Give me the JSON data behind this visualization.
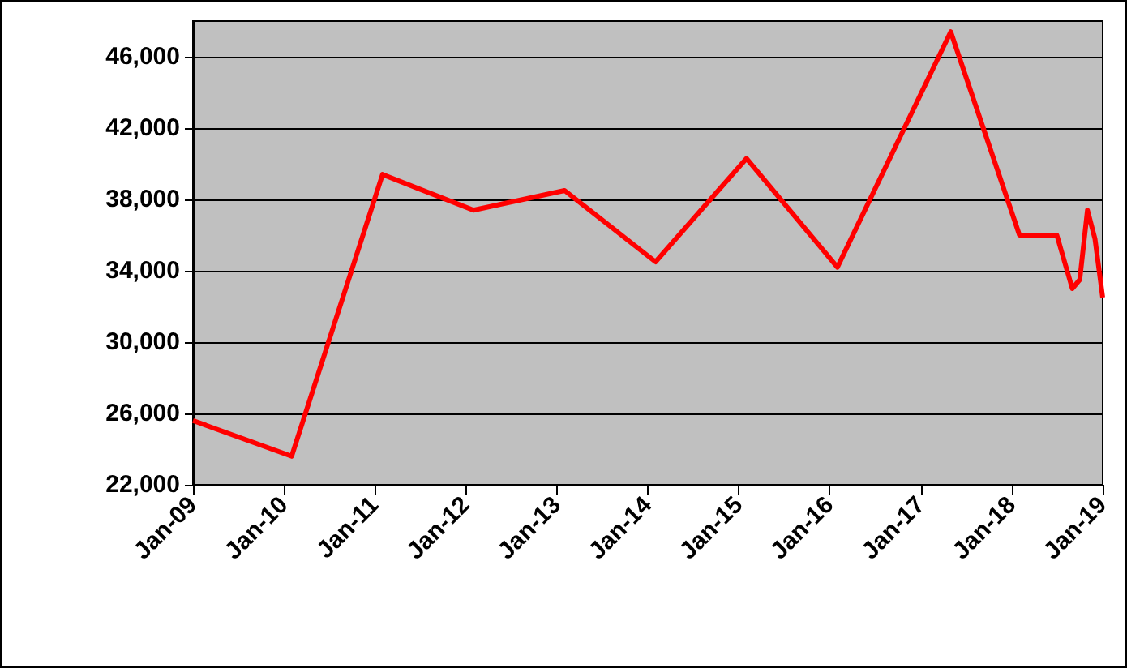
{
  "chart_data": {
    "type": "line",
    "x": [
      "2009-01",
      "2010-02",
      "2011-02",
      "2012-02",
      "2013-02",
      "2014-02",
      "2015-02",
      "2016-02",
      "2017-05",
      "2018-02",
      "2018-07",
      "2018-09",
      "2018-10",
      "2018-11",
      "2018-12",
      "2019-01"
    ],
    "series": [
      {
        "color": "#ff0000",
        "values": [
          25600,
          23600,
          39400,
          37400,
          38500,
          34500,
          40300,
          34200,
          47400,
          36000,
          36000,
          33000,
          33500,
          37400,
          35800,
          32500
        ]
      }
    ],
    "xlim": [
      "2009-01",
      "2019-01"
    ],
    "xticks": [
      {
        "value": "2009-01",
        "label": "Jan-09"
      },
      {
        "value": "2010-01",
        "label": "Jan-10"
      },
      {
        "value": "2011-01",
        "label": "Jan-11"
      },
      {
        "value": "2012-01",
        "label": "Jan-12"
      },
      {
        "value": "2013-01",
        "label": "Jan-13"
      },
      {
        "value": "2014-01",
        "label": "Jan-14"
      },
      {
        "value": "2015-01",
        "label": "Jan-15"
      },
      {
        "value": "2016-01",
        "label": "Jan-16"
      },
      {
        "value": "2017-01",
        "label": "Jan-17"
      },
      {
        "value": "2018-01",
        "label": "Jan-18"
      },
      {
        "value": "2019-01",
        "label": "Jan-19"
      }
    ],
    "ylim": [
      22000,
      48000
    ],
    "yticks": [
      {
        "value": 22000,
        "label": "22,000"
      },
      {
        "value": 26000,
        "label": "26,000"
      },
      {
        "value": 30000,
        "label": "30,000"
      },
      {
        "value": 34000,
        "label": "34,000"
      },
      {
        "value": 38000,
        "label": "38,000"
      },
      {
        "value": 42000,
        "label": "42,000"
      },
      {
        "value": 46000,
        "label": "46,000"
      }
    ],
    "grid": "y",
    "marker": "none",
    "line_style": "solid"
  }
}
